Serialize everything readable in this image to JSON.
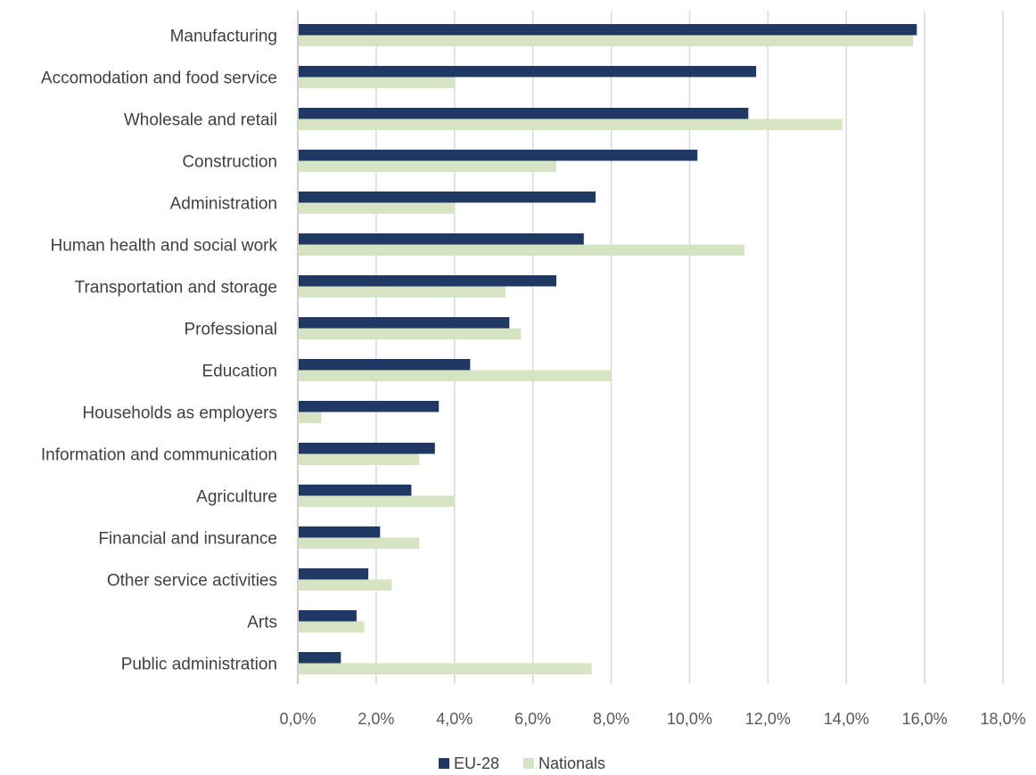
{
  "chart_data": {
    "type": "bar",
    "orientation": "horizontal",
    "categories": [
      "Manufacturing",
      "Accomodation and food service",
      "Wholesale and retail",
      "Construction",
      "Administration",
      "Human health and social work",
      "Transportation and storage",
      "Professional",
      "Education",
      "Households as employers",
      "Information and communication",
      "Agriculture",
      "Financial and insurance",
      "Other service activities",
      "Arts",
      "Public administration"
    ],
    "series": [
      {
        "name": "EU-28",
        "color": "#1f3864",
        "values": [
          15.8,
          11.7,
          11.5,
          10.2,
          7.6,
          7.3,
          6.6,
          5.4,
          4.4,
          3.6,
          3.5,
          2.9,
          2.1,
          1.8,
          1.5,
          1.1
        ]
      },
      {
        "name": "Nationals",
        "color": "#d6e4c4",
        "values": [
          15.7,
          4.0,
          13.9,
          6.6,
          4.0,
          11.4,
          5.3,
          5.7,
          8.0,
          0.6,
          3.1,
          4.0,
          3.1,
          2.4,
          1.7,
          7.5
        ]
      }
    ],
    "xlim": [
      0,
      18
    ],
    "xticks": [
      "0,0%",
      "2,0%",
      "4,0%",
      "6,0%",
      "8,0%",
      "10,0%",
      "12,0%",
      "14,0%",
      "16,0%",
      "18,0%"
    ],
    "grid": true,
    "legend_position": "bottom"
  }
}
